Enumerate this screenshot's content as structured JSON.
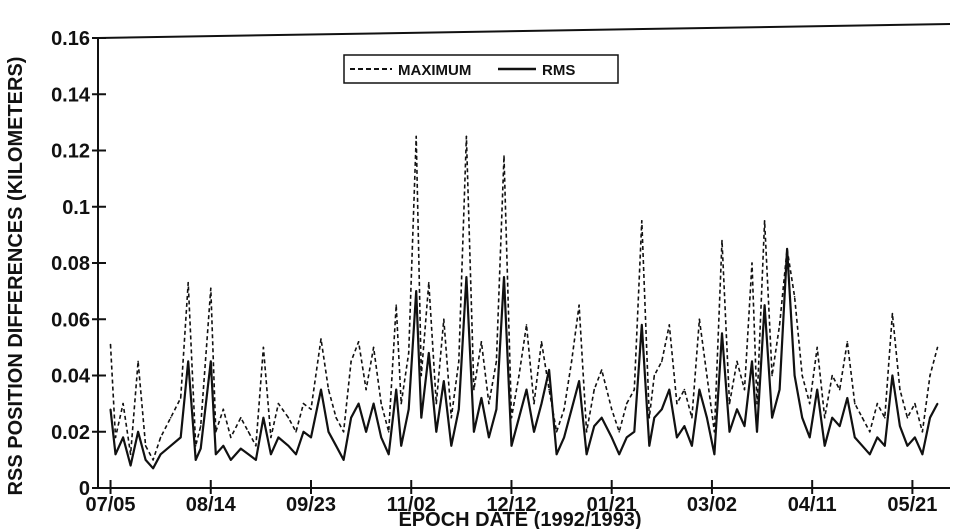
{
  "chart_data": {
    "type": "line",
    "title": "",
    "xlabel": "EPOCH DATE (1992/1993)",
    "ylabel": "RSS POSITION DIFFERENCES (KILOMETERS)",
    "ylim": [
      0,
      0.16
    ],
    "xlim": [
      "1992-06-30",
      "1993-06-05"
    ],
    "y_ticks": [
      "0",
      "0.02",
      "0.04",
      "0.06",
      "0.08",
      "0.1",
      "0.12",
      "0.14",
      "0.16"
    ],
    "x_ticks": [
      {
        "label": "07/05",
        "date": "1992-07-05"
      },
      {
        "label": "08/14",
        "date": "1992-08-14"
      },
      {
        "label": "09/23",
        "date": "1992-09-23"
      },
      {
        "label": "11/02",
        "date": "1992-11-02"
      },
      {
        "label": "12/12",
        "date": "1992-12-12"
      },
      {
        "label": "01/21",
        "date": "1993-01-21"
      },
      {
        "label": "03/02",
        "date": "1993-03-02"
      },
      {
        "label": "04/11",
        "date": "1993-04-11"
      },
      {
        "label": "05/21",
        "date": "1993-05-21"
      }
    ],
    "grid": false,
    "legend_position": "top-center",
    "series": [
      {
        "name": "MAXIMUM",
        "style": "dashed",
        "color": "#111111",
        "x": [
          "1992-07-05",
          "1992-07-07",
          "1992-07-10",
          "1992-07-13",
          "1992-07-16",
          "1992-07-19",
          "1992-07-22",
          "1992-07-25",
          "1992-07-29",
          "1992-08-02",
          "1992-08-05",
          "1992-08-08",
          "1992-08-10",
          "1992-08-14",
          "1992-08-16",
          "1992-08-19",
          "1992-08-22",
          "1992-08-26",
          "1992-08-29",
          "1992-09-01",
          "1992-09-04",
          "1992-09-07",
          "1992-09-10",
          "1992-09-14",
          "1992-09-17",
          "1992-09-20",
          "1992-09-23",
          "1992-09-27",
          "1992-09-30",
          "1992-10-03",
          "1992-10-06",
          "1992-10-09",
          "1992-10-12",
          "1992-10-15",
          "1992-10-18",
          "1992-10-21",
          "1992-10-24",
          "1992-10-27",
          "1992-10-29",
          "1992-11-01",
          "1992-11-04",
          "1992-11-06",
          "1992-11-09",
          "1992-11-12",
          "1992-11-15",
          "1992-11-18",
          "1992-11-21",
          "1992-11-24",
          "1992-11-27",
          "1992-11-30",
          "1992-12-03",
          "1992-12-06",
          "1992-12-09",
          "1992-12-12",
          "1992-12-15",
          "1992-12-18",
          "1992-12-21",
          "1992-12-24",
          "1992-12-27",
          "1992-12-30",
          "1993-01-02",
          "1993-01-05",
          "1993-01-08",
          "1993-01-11",
          "1993-01-14",
          "1993-01-17",
          "1993-01-21",
          "1993-01-24",
          "1993-01-27",
          "1993-01-30",
          "1993-02-02",
          "1993-02-05",
          "1993-02-07",
          "1993-02-10",
          "1993-02-13",
          "1993-02-16",
          "1993-02-19",
          "1993-02-22",
          "1993-02-25",
          "1993-02-28",
          "1993-03-03",
          "1993-03-06",
          "1993-03-09",
          "1993-03-12",
          "1993-03-15",
          "1993-03-18",
          "1993-03-20",
          "1993-03-23",
          "1993-03-26",
          "1993-03-29",
          "1993-04-01",
          "1993-04-04",
          "1993-04-07",
          "1993-04-10",
          "1993-04-13",
          "1993-04-16",
          "1993-04-19",
          "1993-04-22",
          "1993-04-25",
          "1993-04-28",
          "1993-05-01",
          "1993-05-04",
          "1993-05-07",
          "1993-05-10",
          "1993-05-13",
          "1993-05-16",
          "1993-05-19",
          "1993-05-22",
          "1993-05-25",
          "1993-05-28",
          "1993-05-31"
        ],
        "values": [
          0.051,
          0.018,
          0.03,
          0.012,
          0.045,
          0.015,
          0.01,
          0.018,
          0.025,
          0.032,
          0.073,
          0.015,
          0.022,
          0.071,
          0.02,
          0.028,
          0.018,
          0.025,
          0.02,
          0.015,
          0.05,
          0.018,
          0.03,
          0.025,
          0.02,
          0.03,
          0.028,
          0.053,
          0.035,
          0.025,
          0.02,
          0.045,
          0.052,
          0.035,
          0.05,
          0.03,
          0.02,
          0.065,
          0.03,
          0.048,
          0.125,
          0.04,
          0.073,
          0.03,
          0.06,
          0.025,
          0.045,
          0.125,
          0.035,
          0.052,
          0.03,
          0.045,
          0.118,
          0.025,
          0.04,
          0.058,
          0.03,
          0.052,
          0.035,
          0.02,
          0.028,
          0.045,
          0.065,
          0.02,
          0.035,
          0.042,
          0.028,
          0.02,
          0.03,
          0.035,
          0.095,
          0.025,
          0.04,
          0.045,
          0.058,
          0.03,
          0.035,
          0.025,
          0.06,
          0.04,
          0.02,
          0.088,
          0.03,
          0.045,
          0.035,
          0.08,
          0.03,
          0.095,
          0.04,
          0.058,
          0.085,
          0.068,
          0.04,
          0.03,
          0.05,
          0.025,
          0.04,
          0.035,
          0.052,
          0.03,
          0.025,
          0.02,
          0.03,
          0.025,
          0.062,
          0.035,
          0.025,
          0.03,
          0.02,
          0.04,
          0.05
        ]
      },
      {
        "name": "RMS",
        "style": "solid",
        "color": "#111111",
        "x": [
          "1992-07-05",
          "1992-07-07",
          "1992-07-10",
          "1992-07-13",
          "1992-07-16",
          "1992-07-19",
          "1992-07-22",
          "1992-07-25",
          "1992-07-29",
          "1992-08-02",
          "1992-08-05",
          "1992-08-08",
          "1992-08-10",
          "1992-08-14",
          "1992-08-16",
          "1992-08-19",
          "1992-08-22",
          "1992-08-26",
          "1992-08-29",
          "1992-09-01",
          "1992-09-04",
          "1992-09-07",
          "1992-09-10",
          "1992-09-14",
          "1992-09-17",
          "1992-09-20",
          "1992-09-23",
          "1992-09-27",
          "1992-09-30",
          "1992-10-03",
          "1992-10-06",
          "1992-10-09",
          "1992-10-12",
          "1992-10-15",
          "1992-10-18",
          "1992-10-21",
          "1992-10-24",
          "1992-10-27",
          "1992-10-29",
          "1992-11-01",
          "1992-11-04",
          "1992-11-06",
          "1992-11-09",
          "1992-11-12",
          "1992-11-15",
          "1992-11-18",
          "1992-11-21",
          "1992-11-24",
          "1992-11-27",
          "1992-11-30",
          "1992-12-03",
          "1992-12-06",
          "1992-12-09",
          "1992-12-12",
          "1992-12-15",
          "1992-12-18",
          "1992-12-21",
          "1992-12-24",
          "1992-12-27",
          "1992-12-30",
          "1993-01-02",
          "1993-01-05",
          "1993-01-08",
          "1993-01-11",
          "1993-01-14",
          "1993-01-17",
          "1993-01-21",
          "1993-01-24",
          "1993-01-27",
          "1993-01-30",
          "1993-02-02",
          "1993-02-05",
          "1993-02-07",
          "1993-02-10",
          "1993-02-13",
          "1993-02-16",
          "1993-02-19",
          "1993-02-22",
          "1993-02-25",
          "1993-02-28",
          "1993-03-03",
          "1993-03-06",
          "1993-03-09",
          "1993-03-12",
          "1993-03-15",
          "1993-03-18",
          "1993-03-20",
          "1993-03-23",
          "1993-03-26",
          "1993-03-29",
          "1993-04-01",
          "1993-04-04",
          "1993-04-07",
          "1993-04-10",
          "1993-04-13",
          "1993-04-16",
          "1993-04-19",
          "1993-04-22",
          "1993-04-25",
          "1993-04-28",
          "1993-05-01",
          "1993-05-04",
          "1993-05-07",
          "1993-05-10",
          "1993-05-13",
          "1993-05-16",
          "1993-05-19",
          "1993-05-22",
          "1993-05-25",
          "1993-05-28",
          "1993-05-31"
        ],
        "values": [
          0.028,
          0.012,
          0.018,
          0.008,
          0.02,
          0.01,
          0.007,
          0.012,
          0.015,
          0.018,
          0.045,
          0.01,
          0.014,
          0.045,
          0.012,
          0.015,
          0.01,
          0.014,
          0.012,
          0.01,
          0.025,
          0.012,
          0.018,
          0.015,
          0.012,
          0.02,
          0.018,
          0.035,
          0.02,
          0.015,
          0.01,
          0.025,
          0.03,
          0.02,
          0.03,
          0.018,
          0.012,
          0.035,
          0.015,
          0.028,
          0.07,
          0.025,
          0.048,
          0.02,
          0.038,
          0.015,
          0.028,
          0.075,
          0.02,
          0.032,
          0.018,
          0.028,
          0.075,
          0.015,
          0.025,
          0.035,
          0.02,
          0.03,
          0.042,
          0.012,
          0.018,
          0.028,
          0.038,
          0.012,
          0.022,
          0.025,
          0.018,
          0.012,
          0.018,
          0.02,
          0.058,
          0.015,
          0.025,
          0.028,
          0.035,
          0.018,
          0.022,
          0.015,
          0.035,
          0.025,
          0.012,
          0.055,
          0.02,
          0.028,
          0.022,
          0.045,
          0.02,
          0.065,
          0.025,
          0.035,
          0.085,
          0.04,
          0.025,
          0.018,
          0.035,
          0.015,
          0.025,
          0.022,
          0.032,
          0.018,
          0.015,
          0.012,
          0.018,
          0.015,
          0.04,
          0.022,
          0.015,
          0.018,
          0.012,
          0.025,
          0.03
        ]
      }
    ]
  }
}
